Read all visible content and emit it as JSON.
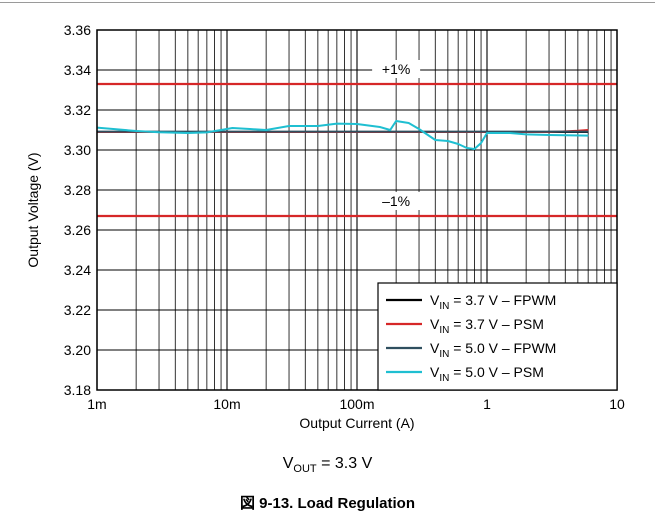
{
  "chart_data": {
    "type": "line",
    "title": "",
    "xlabel": "Output Current (A)",
    "ylabel": "Output Voltage (V)",
    "x_scale": "log",
    "xlim": [
      0.001,
      10
    ],
    "ylim": [
      3.18,
      3.36
    ],
    "x_tick_values": [
      0.001,
      0.01,
      0.1,
      1,
      10
    ],
    "x_tick_labels": [
      "1m",
      "10m",
      "100m",
      "1",
      "10"
    ],
    "y_tick_values": [
      3.18,
      3.2,
      3.22,
      3.24,
      3.26,
      3.28,
      3.3,
      3.32,
      3.34,
      3.36
    ],
    "y_tick_labels": [
      "3.18",
      "3.20",
      "3.22",
      "3.24",
      "3.26",
      "3.28",
      "3.30",
      "3.32",
      "3.34",
      "3.36"
    ],
    "grid": true,
    "legend_position": "bottom-right",
    "reference_lines": [
      {
        "label": "+1%",
        "y": 3.333,
        "color": "#d62728"
      },
      {
        "label": "–1%",
        "y": 3.267,
        "color": "#d62728"
      }
    ],
    "series": [
      {
        "name_main": "V",
        "name_sub": "IN",
        "name_rest": " = 3.7 V – FPWM",
        "color": "#000000",
        "x": [
          0.001,
          0.003,
          0.01,
          0.03,
          0.1,
          0.3,
          1,
          3,
          6
        ],
        "y": [
          3.309,
          3.309,
          3.309,
          3.309,
          3.309,
          3.309,
          3.309,
          3.309,
          3.309
        ]
      },
      {
        "name_main": "V",
        "name_sub": "IN",
        "name_rest": " = 3.7 V – PSM",
        "color": "#d62728",
        "x": [
          0.001,
          0.01,
          0.1,
          1,
          2,
          3,
          4,
          5,
          6
        ],
        "y": [
          3.309,
          3.309,
          3.309,
          3.309,
          3.309,
          3.309,
          3.3093,
          3.3096,
          3.31
        ]
      },
      {
        "name_main": "V",
        "name_sub": "IN",
        "name_rest": " = 5.0 V – FPWM",
        "color": "#2f4f5f",
        "x": [
          0.001,
          0.003,
          0.01,
          0.03,
          0.1,
          0.3,
          1,
          3,
          6
        ],
        "y": [
          3.3092,
          3.3092,
          3.3092,
          3.3092,
          3.3092,
          3.3092,
          3.3092,
          3.3092,
          3.3092
        ]
      },
      {
        "name_main": "V",
        "name_sub": "IN",
        "name_rest": " = 5.0 V – PSM",
        "color": "#1fbfd1",
        "x": [
          0.001,
          0.002,
          0.003,
          0.005,
          0.007,
          0.009,
          0.011,
          0.015,
          0.02,
          0.03,
          0.05,
          0.07,
          0.1,
          0.15,
          0.18,
          0.2,
          0.25,
          0.3,
          0.4,
          0.5,
          0.6,
          0.7,
          0.8,
          0.9,
          1,
          1.5,
          2,
          3,
          6
        ],
        "y": [
          3.3112,
          3.3095,
          3.3089,
          3.3085,
          3.3088,
          3.31,
          3.311,
          3.3105,
          3.31,
          3.312,
          3.312,
          3.3132,
          3.313,
          3.3115,
          3.31,
          3.3145,
          3.3135,
          3.3105,
          3.305,
          3.3045,
          3.303,
          3.301,
          3.3005,
          3.3035,
          3.3085,
          3.3085,
          3.3078,
          3.3075,
          3.3072
        ]
      }
    ]
  },
  "caption": {
    "main": "V",
    "sub": "OUT",
    "rest": " = 3.3 V"
  },
  "figure_title": "図 9-13. Load Regulation"
}
